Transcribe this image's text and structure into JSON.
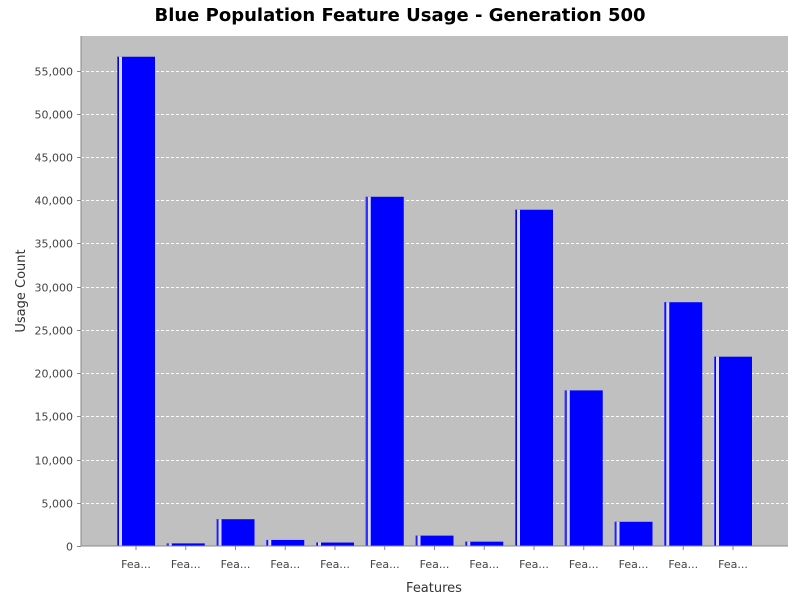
{
  "chart_data": {
    "type": "bar",
    "title": "Blue Population Feature Usage - Generation 500",
    "xlabel": "Features",
    "ylabel": "Usage Count",
    "ylim": [
      0,
      59000
    ],
    "yticks": [
      0,
      5000,
      10000,
      15000,
      20000,
      25000,
      30000,
      35000,
      40000,
      45000,
      50000,
      55000
    ],
    "ytick_labels": [
      "0",
      "5,000",
      "10,000",
      "15,000",
      "20,000",
      "25,000",
      "30,000",
      "35,000",
      "40,000",
      "45,000",
      "50,000",
      "55,000"
    ],
    "categories": [
      "Fea...",
      "Fea...",
      "Fea...",
      "Fea...",
      "Fea...",
      "Fea...",
      "Fea...",
      "Fea...",
      "Fea...",
      "Fea...",
      "Fea...",
      "Fea...",
      "Fea..."
    ],
    "values": [
      56600,
      300,
      3100,
      700,
      400,
      40400,
      1200,
      500,
      38900,
      18000,
      2800,
      28200,
      21900
    ],
    "grid": true,
    "colors": {
      "bar": "#0000ff",
      "bar_highlight": "#d8d8ff",
      "plot_background": "#c0c0c0",
      "gridline": "#ffffff"
    }
  }
}
